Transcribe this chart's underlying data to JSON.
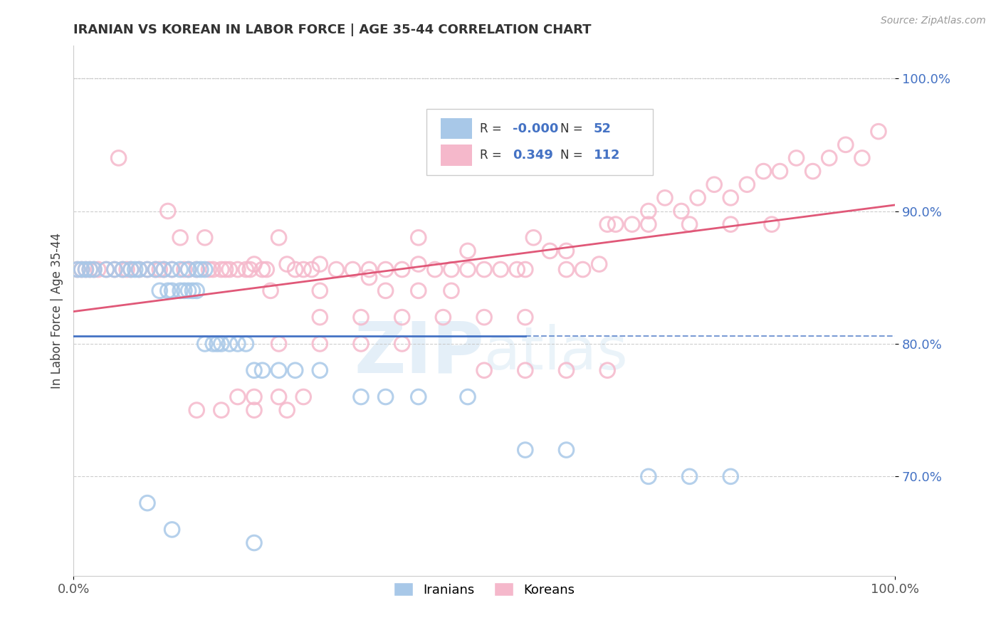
{
  "title": "IRANIAN VS KOREAN IN LABOR FORCE | AGE 35-44 CORRELATION CHART",
  "source_text": "Source: ZipAtlas.com",
  "ylabel": "In Labor Force | Age 35-44",
  "xlim": [
    0.0,
    1.0
  ],
  "ylim": [
    0.625,
    1.025
  ],
  "yticks": [
    0.7,
    0.8,
    0.9,
    1.0
  ],
  "ytick_labels": [
    "70.0%",
    "80.0%",
    "90.0%",
    "100.0%"
  ],
  "xticks": [
    0.0,
    1.0
  ],
  "xtick_labels": [
    "0.0%",
    "100.0%"
  ],
  "legend_R_iranian": "-0.000",
  "legend_N_iranian": "52",
  "legend_R_korean": "0.349",
  "legend_N_korean": "112",
  "iranian_color": "#a8c8e8",
  "iranian_edge_color": "#7aaad0",
  "korean_color": "#f5b8cb",
  "korean_edge_color": "#e890a8",
  "iranian_line_color": "#4472c4",
  "korean_line_color": "#e05878",
  "watermark": "ZIPatlas",
  "background_color": "#ffffff",
  "grid_color": "#c8c8c8",
  "title_color": "#333333",
  "iranian_x": [
    0.005,
    0.01,
    0.015,
    0.02,
    0.025,
    0.04,
    0.05,
    0.06,
    0.07,
    0.075,
    0.08,
    0.09,
    0.1,
    0.11,
    0.12,
    0.13,
    0.14,
    0.15,
    0.155,
    0.16,
    0.105,
    0.115,
    0.12,
    0.13,
    0.135,
    0.14,
    0.145,
    0.15,
    0.16,
    0.17,
    0.175,
    0.18,
    0.19,
    0.2,
    0.21,
    0.22,
    0.23,
    0.25,
    0.27,
    0.3,
    0.35,
    0.38,
    0.42,
    0.48,
    0.55,
    0.6,
    0.7,
    0.75,
    0.8,
    0.09,
    0.12,
    0.22
  ],
  "iranian_y": [
    0.856,
    0.856,
    0.856,
    0.856,
    0.856,
    0.856,
    0.856,
    0.856,
    0.856,
    0.856,
    0.856,
    0.856,
    0.856,
    0.856,
    0.856,
    0.856,
    0.856,
    0.856,
    0.856,
    0.856,
    0.84,
    0.84,
    0.84,
    0.84,
    0.84,
    0.84,
    0.84,
    0.84,
    0.8,
    0.8,
    0.8,
    0.8,
    0.8,
    0.8,
    0.8,
    0.78,
    0.78,
    0.78,
    0.78,
    0.78,
    0.76,
    0.76,
    0.76,
    0.76,
    0.72,
    0.72,
    0.7,
    0.7,
    0.7,
    0.68,
    0.66,
    0.65
  ],
  "korean_x": [
    0.005,
    0.01,
    0.015,
    0.02,
    0.025,
    0.03,
    0.04,
    0.05,
    0.055,
    0.06,
    0.065,
    0.07,
    0.08,
    0.09,
    0.1,
    0.105,
    0.11,
    0.115,
    0.12,
    0.13,
    0.135,
    0.14,
    0.15,
    0.16,
    0.165,
    0.17,
    0.18,
    0.185,
    0.19,
    0.2,
    0.21,
    0.215,
    0.22,
    0.23,
    0.235,
    0.24,
    0.25,
    0.26,
    0.27,
    0.28,
    0.29,
    0.3,
    0.32,
    0.34,
    0.36,
    0.38,
    0.4,
    0.42,
    0.44,
    0.46,
    0.48,
    0.5,
    0.52,
    0.54,
    0.56,
    0.58,
    0.6,
    0.62,
    0.64,
    0.66,
    0.68,
    0.7,
    0.72,
    0.74,
    0.76,
    0.78,
    0.8,
    0.82,
    0.84,
    0.86,
    0.88,
    0.9,
    0.92,
    0.94,
    0.96,
    0.98,
    0.3,
    0.35,
    0.4,
    0.45,
    0.5,
    0.55,
    0.25,
    0.3,
    0.35,
    0.4,
    0.2,
    0.22,
    0.25,
    0.28,
    0.15,
    0.18,
    0.22,
    0.26,
    0.5,
    0.55,
    0.6,
    0.65,
    0.38,
    0.42,
    0.46,
    0.48,
    0.42,
    0.36,
    0.3,
    0.65,
    0.7,
    0.75,
    0.8,
    0.85,
    0.55,
    0.6
  ],
  "korean_y": [
    0.856,
    0.856,
    0.856,
    0.856,
    0.856,
    0.856,
    0.856,
    0.856,
    0.94,
    0.856,
    0.856,
    0.856,
    0.856,
    0.856,
    0.856,
    0.856,
    0.856,
    0.9,
    0.856,
    0.88,
    0.856,
    0.856,
    0.856,
    0.88,
    0.856,
    0.856,
    0.856,
    0.856,
    0.856,
    0.856,
    0.856,
    0.856,
    0.86,
    0.856,
    0.856,
    0.84,
    0.88,
    0.86,
    0.856,
    0.856,
    0.856,
    0.86,
    0.856,
    0.856,
    0.856,
    0.856,
    0.856,
    0.88,
    0.856,
    0.856,
    0.856,
    0.856,
    0.856,
    0.856,
    0.88,
    0.87,
    0.87,
    0.856,
    0.86,
    0.89,
    0.89,
    0.9,
    0.91,
    0.9,
    0.91,
    0.92,
    0.91,
    0.92,
    0.93,
    0.93,
    0.94,
    0.93,
    0.94,
    0.95,
    0.94,
    0.96,
    0.82,
    0.82,
    0.82,
    0.82,
    0.82,
    0.82,
    0.8,
    0.8,
    0.8,
    0.8,
    0.76,
    0.76,
    0.76,
    0.76,
    0.75,
    0.75,
    0.75,
    0.75,
    0.78,
    0.78,
    0.78,
    0.78,
    0.84,
    0.84,
    0.84,
    0.87,
    0.86,
    0.85,
    0.84,
    0.89,
    0.89,
    0.89,
    0.89,
    0.89,
    0.856,
    0.856
  ]
}
